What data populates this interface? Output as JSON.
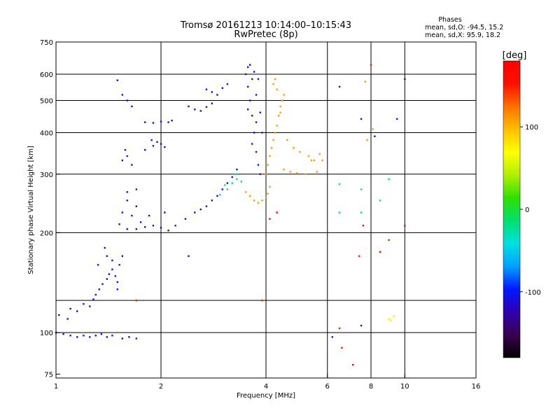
{
  "chart_data": {
    "type": "scatter",
    "title": "Tromsø 20161213 10:14:00–10:15:43",
    "subtitle": "RwPretec (8p)",
    "xlabel": "Frequency [MHz]",
    "ylabel": "Stationary phase Virtual Height [km]",
    "x_scale": "log",
    "y_scale": "log",
    "xlim": [
      1,
      16
    ],
    "ylim": [
      73,
      750
    ],
    "grid": true,
    "x_ticks": [
      1,
      2,
      4,
      6,
      8,
      10,
      16
    ],
    "x_tick_labels": [
      "1",
      "2",
      "4",
      "6",
      "8",
      "10",
      "16"
    ],
    "x_grid": [
      2,
      4,
      6,
      8,
      10
    ],
    "y_ticks": [
      75,
      100,
      200,
      300,
      400,
      500,
      600,
      750
    ],
    "y_tick_labels": [
      "75",
      "100",
      "200",
      "300",
      "400",
      "500",
      "600",
      "750"
    ],
    "y_grid": [
      100,
      125,
      200,
      300,
      400,
      500,
      600
    ],
    "stats": {
      "heading": "Phases",
      "line_o": "mean, sd,O: -94.5, 15.2",
      "line_x": "mean, sd,X:  95.9, 18.2"
    },
    "colorbar": {
      "label": "[deg]",
      "range": [
        -180,
        180
      ],
      "ticks": [
        100,
        0,
        -100
      ],
      "tick_labels": [
        "100",
        "0",
        "-100"
      ],
      "colors": [
        "#000000",
        "#3a0050",
        "#3000b0",
        "#0018ff",
        "#00a0ff",
        "#00e0e0",
        "#00e070",
        "#30e000",
        "#b0f000",
        "#ffff00",
        "#ffc000",
        "#ff7000",
        "#ff1000",
        "#ff0000"
      ]
    },
    "series": [
      {
        "phase": -110,
        "points": [
          [
            1.0,
            100
          ],
          [
            1.05,
            99
          ],
          [
            1.1,
            98
          ],
          [
            1.15,
            97
          ],
          [
            1.2,
            98
          ],
          [
            1.25,
            97
          ],
          [
            1.3,
            98
          ],
          [
            1.35,
            99
          ],
          [
            1.4,
            97
          ],
          [
            1.45,
            98
          ],
          [
            1.55,
            96
          ],
          [
            1.62,
            97
          ],
          [
            1.7,
            96
          ],
          [
            1.02,
            113
          ],
          [
            1.08,
            110
          ],
          [
            1.1,
            118
          ],
          [
            1.15,
            116
          ],
          [
            1.2,
            122
          ],
          [
            1.25,
            120
          ],
          [
            1.28,
            126
          ],
          [
            1.3,
            130
          ],
          [
            1.33,
            135
          ],
          [
            1.36,
            140
          ],
          [
            1.4,
            145
          ],
          [
            1.42,
            150
          ],
          [
            1.45,
            155
          ],
          [
            1.48,
            148
          ],
          [
            1.5,
            142
          ],
          [
            1.52,
            160
          ],
          [
            1.55,
            170
          ],
          [
            1.4,
            170
          ],
          [
            1.38,
            180
          ],
          [
            1.45,
            165
          ],
          [
            1.32,
            160
          ],
          [
            1.5,
            135
          ],
          [
            1.52,
            212
          ],
          [
            1.6,
            205
          ],
          [
            1.7,
            205
          ],
          [
            1.8,
            208
          ],
          [
            1.9,
            210
          ],
          [
            2.0,
            207
          ],
          [
            2.1,
            203
          ],
          [
            1.55,
            230
          ],
          [
            1.65,
            225
          ],
          [
            1.75,
            215
          ],
          [
            1.85,
            225
          ],
          [
            2.05,
            230
          ],
          [
            1.6,
            250
          ],
          [
            1.7,
            240
          ],
          [
            1.6,
            265
          ],
          [
            1.7,
            270
          ],
          [
            1.55,
            330
          ],
          [
            1.6,
            340
          ],
          [
            1.58,
            355
          ],
          [
            1.65,
            320
          ],
          [
            1.8,
            355
          ],
          [
            1.9,
            365
          ],
          [
            1.95,
            375
          ],
          [
            2.0,
            370
          ],
          [
            2.05,
            362
          ],
          [
            1.88,
            380
          ],
          [
            1.8,
            430
          ],
          [
            1.9,
            428
          ],
          [
            2.0,
            432
          ],
          [
            2.1,
            430
          ],
          [
            2.15,
            435
          ],
          [
            1.5,
            575
          ],
          [
            1.55,
            520
          ],
          [
            1.6,
            500
          ],
          [
            1.65,
            480
          ],
          [
            2.2,
            210
          ],
          [
            2.35,
            220
          ],
          [
            2.5,
            230
          ],
          [
            2.6,
            235
          ],
          [
            2.7,
            240
          ],
          [
            2.8,
            250
          ],
          [
            2.9,
            258
          ],
          [
            3.0,
            270
          ],
          [
            3.1,
            282
          ],
          [
            3.2,
            294
          ],
          [
            3.3,
            310
          ],
          [
            2.4,
            480
          ],
          [
            2.5,
            470
          ],
          [
            2.6,
            465
          ],
          [
            2.7,
            478
          ],
          [
            2.8,
            490
          ],
          [
            2.7,
            540
          ],
          [
            2.8,
            530
          ],
          [
            2.9,
            520
          ],
          [
            3.0,
            545
          ],
          [
            3.1,
            560
          ],
          [
            3.5,
            600
          ],
          [
            3.55,
            550
          ],
          [
            3.6,
            500
          ],
          [
            3.65,
            450
          ],
          [
            3.7,
            400
          ],
          [
            3.75,
            350
          ],
          [
            3.8,
            320
          ],
          [
            3.85,
            300
          ],
          [
            3.55,
            630
          ],
          [
            3.6,
            640
          ],
          [
            3.7,
            610
          ],
          [
            3.65,
            580
          ],
          [
            3.8,
            580
          ],
          [
            3.75,
            520
          ],
          [
            3.85,
            460
          ],
          [
            3.75,
            430
          ],
          [
            3.9,
            400
          ],
          [
            3.55,
            470
          ],
          [
            3.65,
            370
          ],
          [
            6.2,
            97
          ],
          [
            6.5,
            550
          ],
          [
            7.5,
            440
          ],
          [
            7.5,
            105
          ],
          [
            8.2,
            390
          ],
          [
            9.5,
            440
          ],
          [
            10.0,
            580
          ],
          [
            2.4,
            170
          ]
        ]
      },
      {
        "phase": 110,
        "points": [
          [
            3.5,
            265
          ],
          [
            3.6,
            258
          ],
          [
            3.7,
            250
          ],
          [
            3.8,
            246
          ],
          [
            3.9,
            250
          ],
          [
            4.0,
            255
          ],
          [
            4.05,
            262
          ],
          [
            4.1,
            275
          ],
          [
            4.0,
            300
          ],
          [
            4.05,
            320
          ],
          [
            4.1,
            340
          ],
          [
            4.15,
            360
          ],
          [
            4.2,
            380
          ],
          [
            4.25,
            400
          ],
          [
            4.3,
            420
          ],
          [
            4.35,
            450
          ],
          [
            4.4,
            480
          ],
          [
            4.45,
            500
          ],
          [
            4.5,
            520
          ],
          [
            4.2,
            560
          ],
          [
            4.25,
            580
          ],
          [
            4.3,
            540
          ],
          [
            4.4,
            460
          ],
          [
            4.5,
            310
          ],
          [
            4.7,
            305
          ],
          [
            4.9,
            302
          ],
          [
            5.2,
            300
          ],
          [
            5.6,
            305
          ],
          [
            5.8,
            330
          ],
          [
            5.7,
            345
          ],
          [
            4.6,
            380
          ],
          [
            4.8,
            360
          ],
          [
            5.0,
            350
          ],
          [
            5.3,
            340
          ],
          [
            5.4,
            330
          ],
          [
            5.5,
            330
          ],
          [
            7.7,
            570
          ],
          [
            8.1,
            410
          ],
          [
            7.8,
            380
          ]
        ]
      },
      {
        "phase": -20,
        "points": [
          [
            3.1,
            270
          ],
          [
            3.2,
            282
          ],
          [
            3.3,
            290
          ],
          [
            3.3,
            300
          ],
          [
            3.4,
            285
          ],
          [
            2.95,
            260
          ],
          [
            3.05,
            278
          ],
          [
            3.25,
            300
          ],
          [
            6.5,
            230
          ],
          [
            6.5,
            280
          ],
          [
            7.5,
            270
          ],
          [
            7.5,
            230
          ],
          [
            9.0,
            290
          ],
          [
            8.5,
            250
          ]
        ]
      },
      {
        "phase": 180,
        "points": [
          [
            4.3,
            230
          ],
          [
            4.1,
            220
          ],
          [
            6.6,
            90
          ],
          [
            7.1,
            80
          ],
          [
            7.6,
            210
          ],
          [
            8.5,
            175
          ],
          [
            10.0,
            210
          ]
        ]
      },
      {
        "phase": 60,
        "points": [
          [
            9.0,
            110
          ],
          [
            9.3,
            112
          ],
          [
            9.1,
            109
          ]
        ]
      },
      {
        "phase": 150,
        "points": [
          [
            8.0,
            640
          ],
          [
            9.0,
            190
          ],
          [
            6.5,
            103
          ],
          [
            7.4,
            170
          ],
          [
            3.9,
            125
          ],
          [
            1.7,
            125
          ]
        ]
      }
    ]
  }
}
